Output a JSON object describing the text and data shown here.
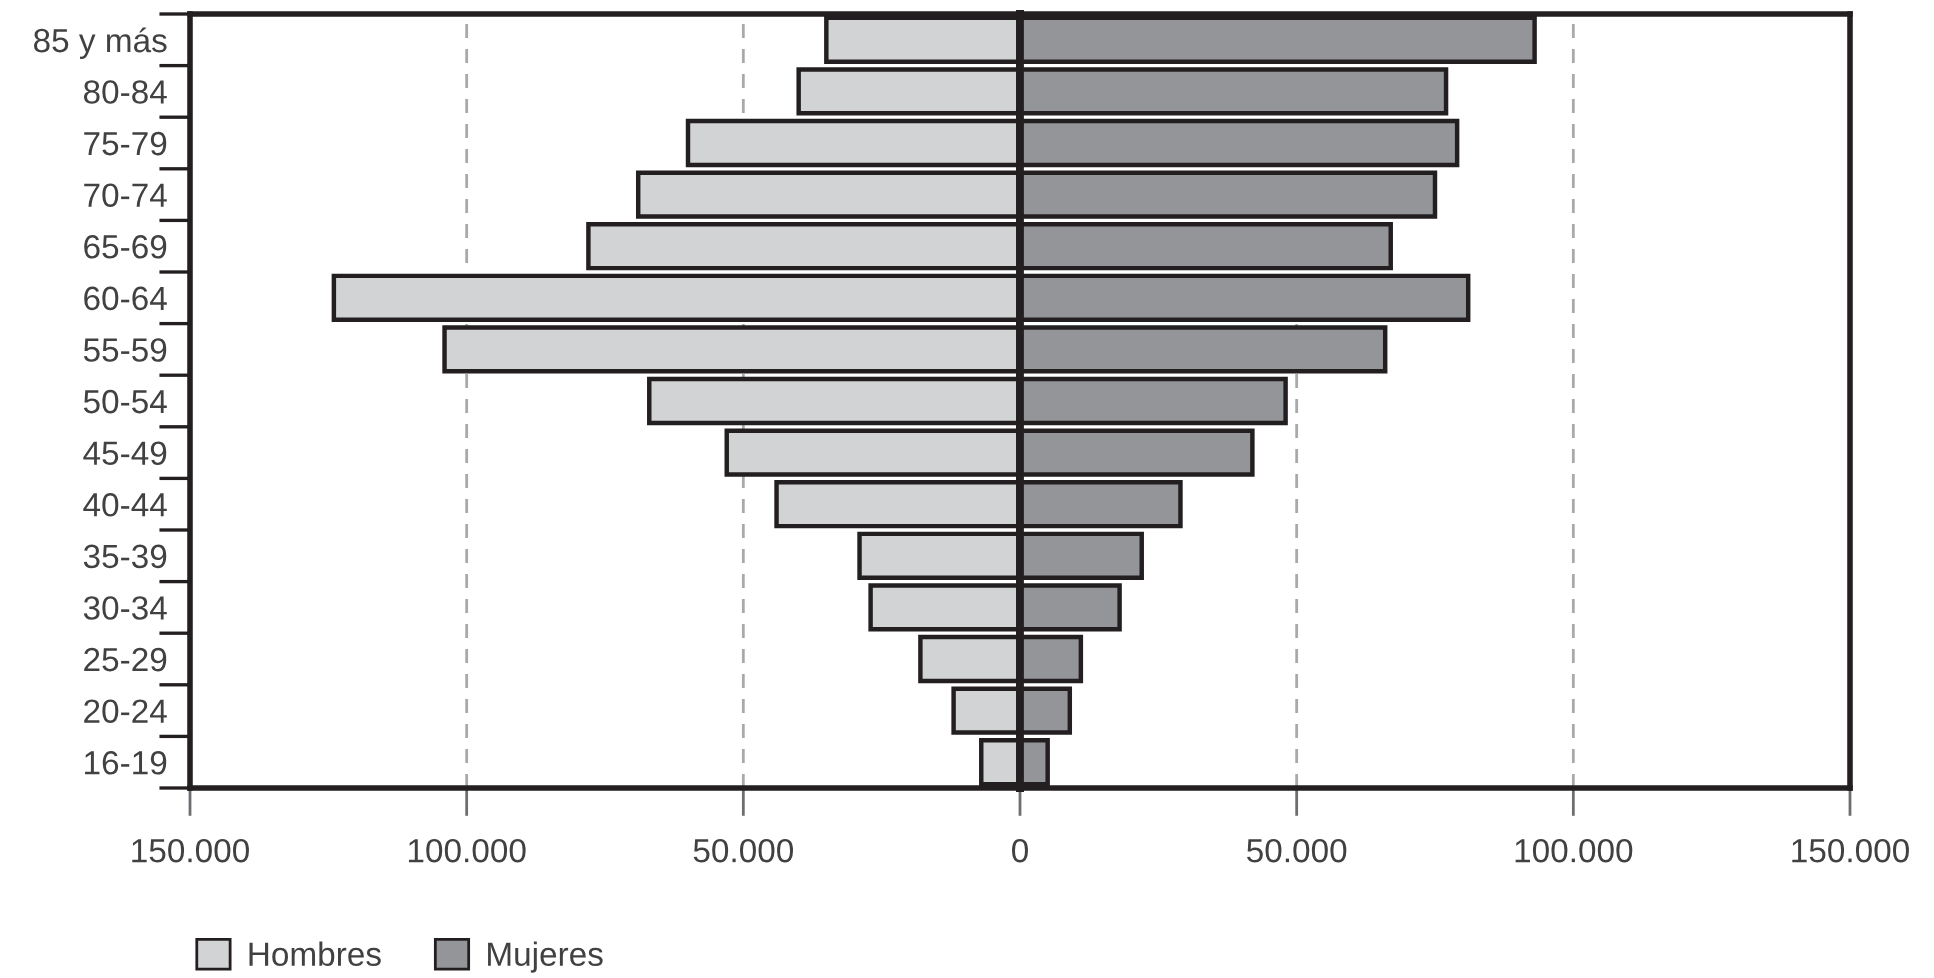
{
  "chart_data": [
    {
      "type": "bar",
      "orientation": "horizontal",
      "categories": [
        "85 y más",
        "80-84",
        "75-79",
        "70-74",
        "65-69",
        "60-64",
        "55-59",
        "50-54",
        "45-49",
        "40-44",
        "35-39",
        "30-34",
        "25-29",
        "20-24",
        "16-19"
      ],
      "series": [
        {
          "name": "Hombres",
          "color": "#d1d3d4",
          "values": [
            35000,
            40000,
            60000,
            69000,
            78000,
            124000,
            104000,
            67000,
            53000,
            44000,
            29000,
            27000,
            18000,
            12000,
            7000
          ]
        }
      ],
      "xlim": [
        150000,
        0
      ],
      "xticks": [
        {
          "value": 150000,
          "label": "150.000"
        },
        {
          "value": 100000,
          "label": "100.000"
        },
        {
          "value": 50000,
          "label": "50.000"
        },
        0
      ],
      "grid": "x",
      "legend": "bottom left"
    },
    {
      "type": "bar",
      "orientation": "horizontal",
      "categories": [
        null,
        null,
        null,
        null,
        null,
        null,
        null,
        null,
        null,
        null,
        null,
        null,
        null,
        null,
        null
      ],
      "series": [
        {
          "name": "Mujeres",
          "color": "#939598",
          "values": [
            93000,
            77000,
            79000,
            75000,
            67000,
            81000,
            66000,
            48000,
            42000,
            29000,
            22000,
            18000,
            11000,
            9000,
            5000
          ]
        }
      ],
      "xlim": [
        0,
        150000
      ],
      "xticks": [
        {
          "value": 50000,
          "label": "50.000"
        },
        {
          "value": 100000,
          "label": "100.000"
        },
        {
          "value": 150000,
          "label": "150.000"
        }
      ],
      "grid": "x",
      "legend": "bottom left"
    }
  ]
}
